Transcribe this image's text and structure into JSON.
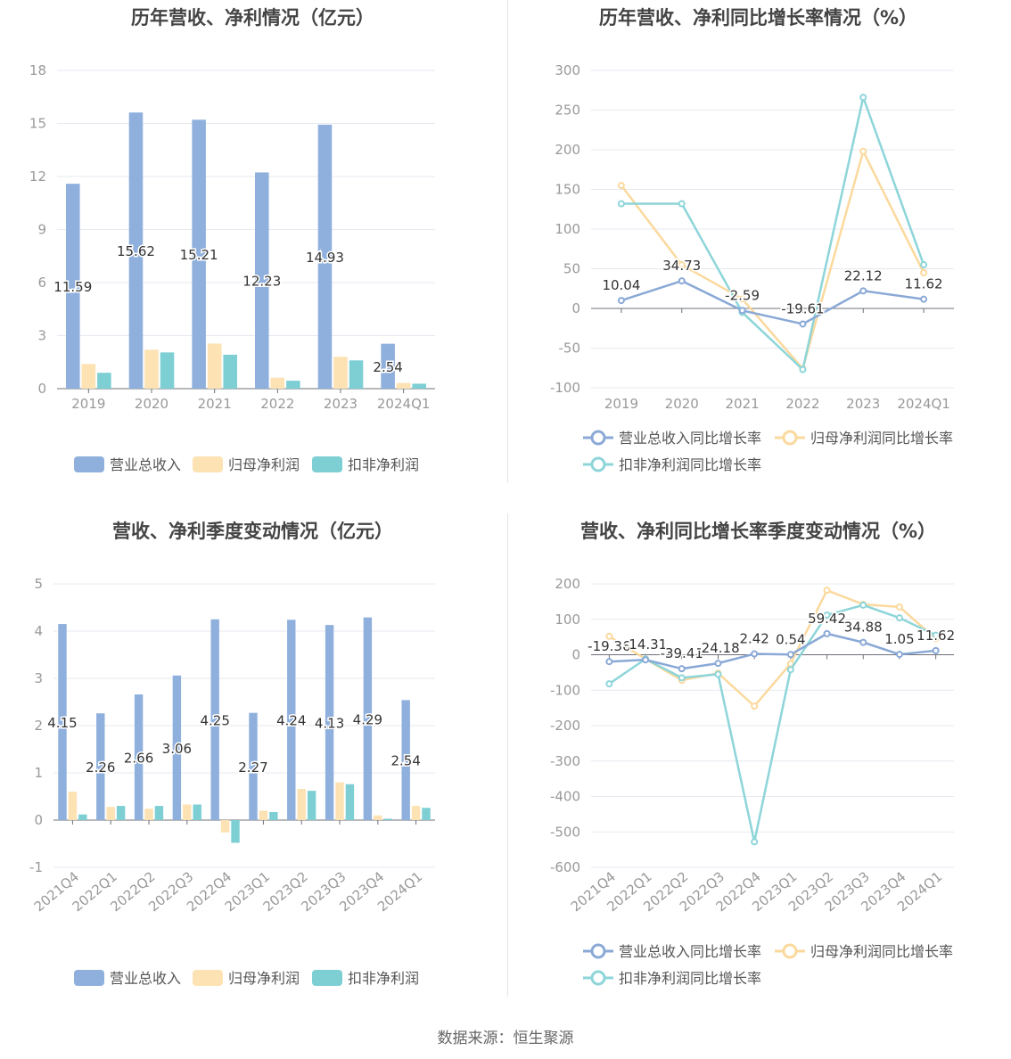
{
  "colors": {
    "revenue": "#8fb0dd",
    "parent_profit": "#fde2b4",
    "deducted_profit": "#7dcfd4",
    "revenue_line": "#8aa9d6",
    "parent_line": "#fbd99d",
    "deducted_line": "#8dd5d9"
  },
  "source": "数据来源：恒生聚源",
  "chart_data": [
    {
      "type": "bar",
      "title": "历年营收、净利情况（亿元）",
      "categories": [
        "2019",
        "2020",
        "2021",
        "2022",
        "2023",
        "2024Q1"
      ],
      "y_ticks": [
        "0",
        "3",
        "6",
        "9",
        "12",
        "15",
        "18"
      ],
      "ylim": [
        0,
        18
      ],
      "grid": true,
      "legend_position": "bottom",
      "series": [
        {
          "name": "营业总收入",
          "values": [
            11.59,
            15.62,
            15.21,
            12.23,
            14.93,
            2.54
          ],
          "labels": [
            "11.59",
            "15.62",
            "15.21",
            "12.23",
            "14.93",
            "2.54"
          ]
        },
        {
          "name": "归母净利润",
          "values": [
            1.4,
            2.2,
            2.55,
            0.62,
            1.8,
            0.32
          ]
        },
        {
          "name": "扣非净利润",
          "values": [
            0.9,
            2.05,
            1.92,
            0.45,
            1.6,
            0.28
          ]
        }
      ]
    },
    {
      "type": "line",
      "title": "历年营收、净利同比增长率情况（%）",
      "categories": [
        "2019",
        "2020",
        "2021",
        "2022",
        "2023",
        "2024Q1"
      ],
      "y_ticks": [
        "-100",
        "-50",
        "0",
        "50",
        "100",
        "150",
        "200",
        "250",
        "300"
      ],
      "ylim": [
        -100,
        300
      ],
      "grid": true,
      "legend_position": "bottom",
      "series": [
        {
          "name": "营业总收入同比增长率",
          "values": [
            10.04,
            34.73,
            -2.59,
            -19.61,
            22.12,
            11.62
          ],
          "labels": [
            "10.04",
            "34.73",
            "-2.59",
            "-19.61",
            "22.12",
            "11.62"
          ]
        },
        {
          "name": "归母净利润同比增长率",
          "values": [
            155,
            55,
            12,
            -76,
            198,
            45
          ]
        },
        {
          "name": "扣非净利润同比增长率",
          "values": [
            132,
            132,
            -5,
            -77,
            266,
            55
          ]
        }
      ]
    },
    {
      "type": "bar",
      "title": "营收、净利季度变动情况（亿元）",
      "categories": [
        "2021Q4",
        "2022Q1",
        "2022Q2",
        "2022Q3",
        "2022Q4",
        "2023Q1",
        "2023Q2",
        "2023Q3",
        "2023Q4",
        "2024Q1"
      ],
      "y_ticks": [
        "-1",
        "0",
        "1",
        "2",
        "3",
        "4",
        "5"
      ],
      "ylim": [
        -1,
        5
      ],
      "grid": true,
      "legend_position": "bottom",
      "series": [
        {
          "name": "营业总收入",
          "values": [
            4.15,
            2.26,
            2.66,
            3.06,
            4.25,
            2.27,
            4.24,
            4.13,
            4.29,
            2.54
          ],
          "labels": [
            "4.15",
            "2.26",
            "2.66",
            "3.06",
            "4.25",
            "2.27",
            "4.24",
            "4.13",
            "4.29",
            "2.54"
          ]
        },
        {
          "name": "归母净利润",
          "values": [
            0.6,
            0.28,
            0.24,
            0.33,
            -0.26,
            0.2,
            0.66,
            0.8,
            0.1,
            0.3
          ]
        },
        {
          "name": "扣非净利润",
          "values": [
            0.12,
            0.3,
            0.3,
            0.33,
            -0.48,
            0.17,
            0.62,
            0.76,
            0.03,
            0.26
          ]
        }
      ]
    },
    {
      "type": "line",
      "title": "营收、净利同比增长率季度变动情况（%）",
      "categories": [
        "2021Q4",
        "2022Q1",
        "2022Q2",
        "2022Q3",
        "2022Q4",
        "2023Q1",
        "2023Q2",
        "2023Q3",
        "2023Q4",
        "2024Q1"
      ],
      "y_ticks": [
        "-600",
        "-500",
        "-400",
        "-300",
        "-200",
        "-100",
        "0",
        "100",
        "200"
      ],
      "ylim": [
        -600,
        200
      ],
      "grid": true,
      "legend_position": "bottom",
      "series": [
        {
          "name": "营业总收入同比增长率",
          "values": [
            -19.36,
            -14.31,
            -39.41,
            -24.18,
            2.42,
            0.54,
            59.42,
            34.88,
            1.05,
            11.62
          ],
          "labels": [
            "-19.36",
            "-14.31",
            "-39.41",
            "-24.18",
            "2.42",
            "0.54",
            "59.42",
            "34.88",
            "1.05",
            "11.62"
          ]
        },
        {
          "name": "归母净利润同比增长率",
          "values": [
            52,
            -12,
            -72,
            -52,
            -145,
            -25,
            182,
            142,
            135,
            45
          ]
        },
        {
          "name": "扣非净利润同比增长率",
          "values": [
            -82,
            -12,
            -65,
            -55,
            -528,
            -42,
            112,
            140,
            104,
            55
          ]
        }
      ]
    }
  ]
}
